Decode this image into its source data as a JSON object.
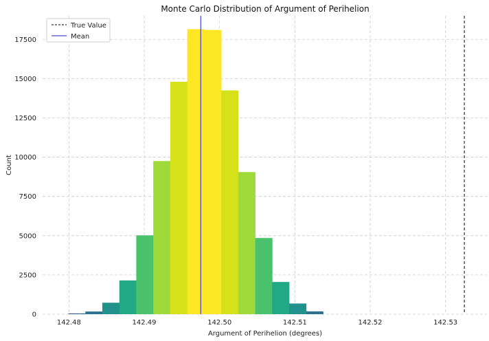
{
  "chart_data": {
    "type": "bar",
    "title": "Monte Carlo Distribution of Argument of Perihelion",
    "xlabel": "Argument of Perihelion (degrees)",
    "ylabel": "Count",
    "xlim": [
      142.4765,
      142.5355
    ],
    "ylim": [
      0,
      19000
    ],
    "xticks": [
      142.48,
      142.49,
      142.5,
      142.51,
      142.52,
      142.53
    ],
    "xtick_labels": [
      "142.48",
      "142.49",
      "142.50",
      "142.51",
      "142.52",
      "142.53"
    ],
    "yticks": [
      0,
      2500,
      5000,
      7500,
      10000,
      12500,
      15000,
      17500
    ],
    "ytick_labels": [
      "0",
      "2500",
      "5000",
      "7500",
      "10000",
      "12500",
      "15000",
      "17500"
    ],
    "grid": true,
    "legend_position": "top-left",
    "bin_width": 0.002255,
    "bins": [
      {
        "left": 142.47992,
        "count": 50,
        "color": "#355f8d"
      },
      {
        "left": 142.48218,
        "count": 170,
        "color": "#2c728e"
      },
      {
        "left": 142.48443,
        "count": 730,
        "color": "#21918c"
      },
      {
        "left": 142.48669,
        "count": 2150,
        "color": "#22a884"
      },
      {
        "left": 142.48894,
        "count": 5020,
        "color": "#4ac16d"
      },
      {
        "left": 142.4912,
        "count": 9750,
        "color": "#9fda3a"
      },
      {
        "left": 142.49345,
        "count": 14800,
        "color": "#d5e21a"
      },
      {
        "left": 142.49571,
        "count": 18150,
        "color": "#fde725"
      },
      {
        "left": 142.49796,
        "count": 18100,
        "color": "#fde725"
      },
      {
        "left": 142.50022,
        "count": 14250,
        "color": "#d5e21a"
      },
      {
        "left": 142.50247,
        "count": 9050,
        "color": "#9fda3a"
      },
      {
        "left": 142.50473,
        "count": 4850,
        "color": "#4ac16d"
      },
      {
        "left": 142.50698,
        "count": 2050,
        "color": "#22a884"
      },
      {
        "left": 142.50924,
        "count": 680,
        "color": "#21918c"
      },
      {
        "left": 142.51149,
        "count": 180,
        "color": "#2c728e"
      }
    ],
    "reference_lines": [
      {
        "name": "True Value",
        "x": 142.5325,
        "color": "#000000",
        "style": "dashed"
      },
      {
        "name": "Mean",
        "x": 142.4975,
        "color": "#1f1fcf",
        "style": "solid"
      }
    ],
    "colors": {
      "grid": "#cccccc",
      "true_value_line": "#000000",
      "mean_line": "#1f1fcf"
    }
  }
}
